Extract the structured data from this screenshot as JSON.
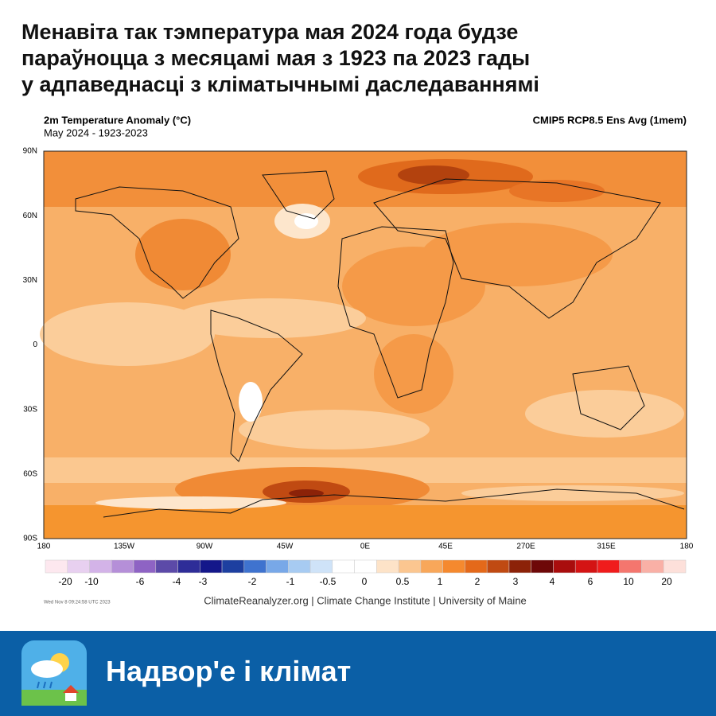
{
  "header": {
    "title_lines": [
      "Менавіта так тэмпература мая 2024 года будзе",
      "параўноцца з месяцамі мая з 1923 па 2023 гады",
      "у адпаведнасці з кліматычнымі даследаваннямі"
    ]
  },
  "map": {
    "title": "2m Temperature Anomaly (°C)",
    "subtitle": "May 2024 - 1923-2023",
    "model": "CMIP5 RCP8.5 Ens Avg (1mem)",
    "lat_labels": [
      "90N",
      "60N",
      "30N",
      "0",
      "30S",
      "60S",
      "90S"
    ],
    "lon_labels": [
      "180",
      "135W",
      "90W",
      "45W",
      "0E",
      "45E",
      "270E",
      "315E",
      "180"
    ],
    "colorbar": {
      "colors": [
        "#fde8ef",
        "#e8d0f0",
        "#d3b3e8",
        "#b58fd8",
        "#8e63c4",
        "#5c4aa8",
        "#2e2d98",
        "#14178a",
        "#1d3fa0",
        "#3f73cf",
        "#78a8e8",
        "#a7cbf2",
        "#cfe3f8",
        "#ffffff",
        "#ffffff",
        "#fde3c8",
        "#fbc690",
        "#f8a75a",
        "#f5892e",
        "#e4691a",
        "#c04a12",
        "#8c2208",
        "#6e0808",
        "#a90d0d",
        "#d41414",
        "#f01c1c",
        "#f4766e",
        "#f9b0a6",
        "#fde0da"
      ],
      "labels": [
        "-20",
        "-10",
        "-6",
        "-4",
        "-3",
        "-2",
        "-1",
        "-0.5",
        "0",
        "0.5",
        "1",
        "2",
        "3",
        "4",
        "6",
        "10",
        "20"
      ]
    },
    "timestamp": "Wed Nov  8 09:24:58 UTC 2023",
    "credit": "ClimateReanalyzer.org | Climate Change Institute | University of Maine"
  },
  "footer": {
    "brand": "Надвор'е і клімат"
  }
}
